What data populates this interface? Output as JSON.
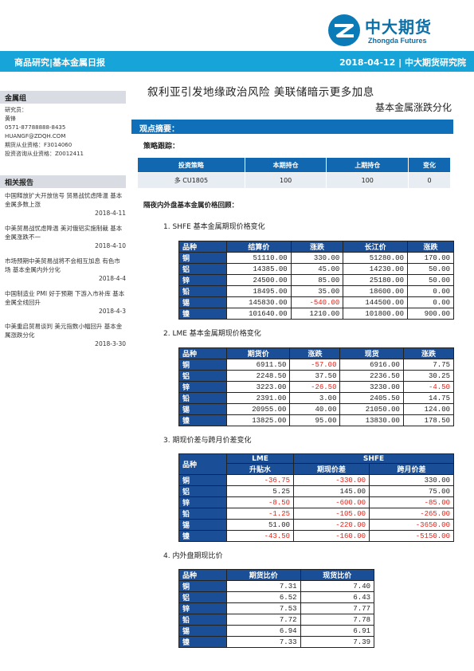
{
  "header": {
    "logo_cn": "中大期货",
    "logo_en": "Zhongda Futures",
    "banner_left": "商品研究|基本金属日报",
    "banner_right": "2018-04-12 | 中大期货研究院"
  },
  "sidebar": {
    "group_title": "金属组",
    "lines": [
      "研究员：",
      "黄锋",
      "0571-87788888-8435",
      "HUANGF@ZDQH.COM",
      "期货从业资格：F3014060",
      "投资咨询从业资格：Z0012411"
    ],
    "reports_title": "相关报告",
    "reports": [
      {
        "text": "中国释放扩大开放信号 贸易战忧虑降温 基本金属多数上涨",
        "date": "2018-4-11"
      },
      {
        "text": "中美贸易战忧虑降温 美对俄铝实施制裁 基本金属涨跌不一",
        "date": "2018-4-10"
      },
      {
        "text": "市场预期中美贸易战将不会相互加息 有色市场 基本金属内外分化",
        "date": "2018-4-4"
      },
      {
        "text": "中国制造业 PMI 好于预期 下游入市补库 基本金属全线回升",
        "date": "2018-4-3"
      },
      {
        "text": "中美重启贸易谈判 美元指数小幅回升 基本金属涨跌分化",
        "date": "2018-3-30"
      }
    ]
  },
  "main": {
    "title1": "叙利亚引发地缘政治风险 美联储暗示更多加息",
    "title2": "基本金属涨跌分化",
    "section_bar": "观点摘要：",
    "strategy_label": "策略跟踪：",
    "position_table": {
      "headers": [
        "投资策略",
        "本期持仓",
        "上期持仓",
        "变化"
      ],
      "rows": [
        [
          "多 CU1805",
          "100",
          "100",
          "0"
        ]
      ]
    },
    "review_label": "隔夜内外盘基本金属价格回顾：",
    "sub1": "1.  SHFE 基本金属期现价格变化",
    "shfe": {
      "headers": [
        "品种",
        "结算价",
        "涨跌",
        "长江价",
        "涨跌"
      ],
      "rows": [
        [
          "铜",
          "51110.00",
          "330.00",
          "51280.00",
          "170.00"
        ],
        [
          "铝",
          "14385.00",
          "45.00",
          "14230.00",
          "50.00"
        ],
        [
          "锌",
          "24500.00",
          "85.00",
          "25180.00",
          "50.00"
        ],
        [
          "铅",
          "18495.00",
          "35.00",
          "18600.00",
          "0.00"
        ],
        [
          "锡",
          "145830.00",
          "-540.00",
          "144500.00",
          "0.00"
        ],
        [
          "镍",
          "101640.00",
          "1210.00",
          "101800.00",
          "900.00"
        ]
      ]
    },
    "sub2": "2.  LME   基本金属期现价格变化",
    "lme": {
      "headers": [
        "品种",
        "期货价",
        "涨跌",
        "现货",
        "涨跌"
      ],
      "rows": [
        [
          "铜",
          "6911.50",
          "-57.00",
          "6916.00",
          "7.75"
        ],
        [
          "铝",
          "2248.50",
          "37.50",
          "2236.50",
          "30.25"
        ],
        [
          "锌",
          "3223.00",
          "-26.50",
          "3230.00",
          "-4.50"
        ],
        [
          "铅",
          "2391.00",
          "3.00",
          "2405.50",
          "14.75"
        ],
        [
          "锡",
          "20955.00",
          "40.00",
          "21050.00",
          "124.00"
        ],
        [
          "镍",
          "13825.00",
          "95.00",
          "13830.00",
          "178.50"
        ]
      ]
    },
    "sub3": "3.  期现价差与跨月价差变化",
    "spread": {
      "group_headers": [
        "品种",
        "LME",
        "SHFE"
      ],
      "headers": [
        "升贴水",
        "期现价差",
        "跨月价差"
      ],
      "rows": [
        [
          "铜",
          "-36.75",
          "-330.00",
          "330.00"
        ],
        [
          "铝",
          "5.25",
          "145.00",
          "75.00"
        ],
        [
          "锌",
          "-8.50",
          "-600.00",
          "-85.00"
        ],
        [
          "铅",
          "-1.25",
          "-105.00",
          "-265.00"
        ],
        [
          "锡",
          "51.00",
          "-220.00",
          "-3650.00"
        ],
        [
          "镍",
          "-43.50",
          "-160.00",
          "-5150.00"
        ]
      ]
    },
    "sub4": "4.  内外盘期现比价",
    "ratio": {
      "headers": [
        "品种",
        "期货比价",
        "现货比价"
      ],
      "rows": [
        [
          "铜",
          "7.31",
          "7.40"
        ],
        [
          "铝",
          "6.52",
          "6.43"
        ],
        [
          "锌",
          "7.53",
          "7.77"
        ],
        [
          "铅",
          "7.72",
          "7.78"
        ],
        [
          "锡",
          "6.94",
          "6.91"
        ],
        [
          "镍",
          "7.33",
          "7.39"
        ]
      ]
    }
  }
}
